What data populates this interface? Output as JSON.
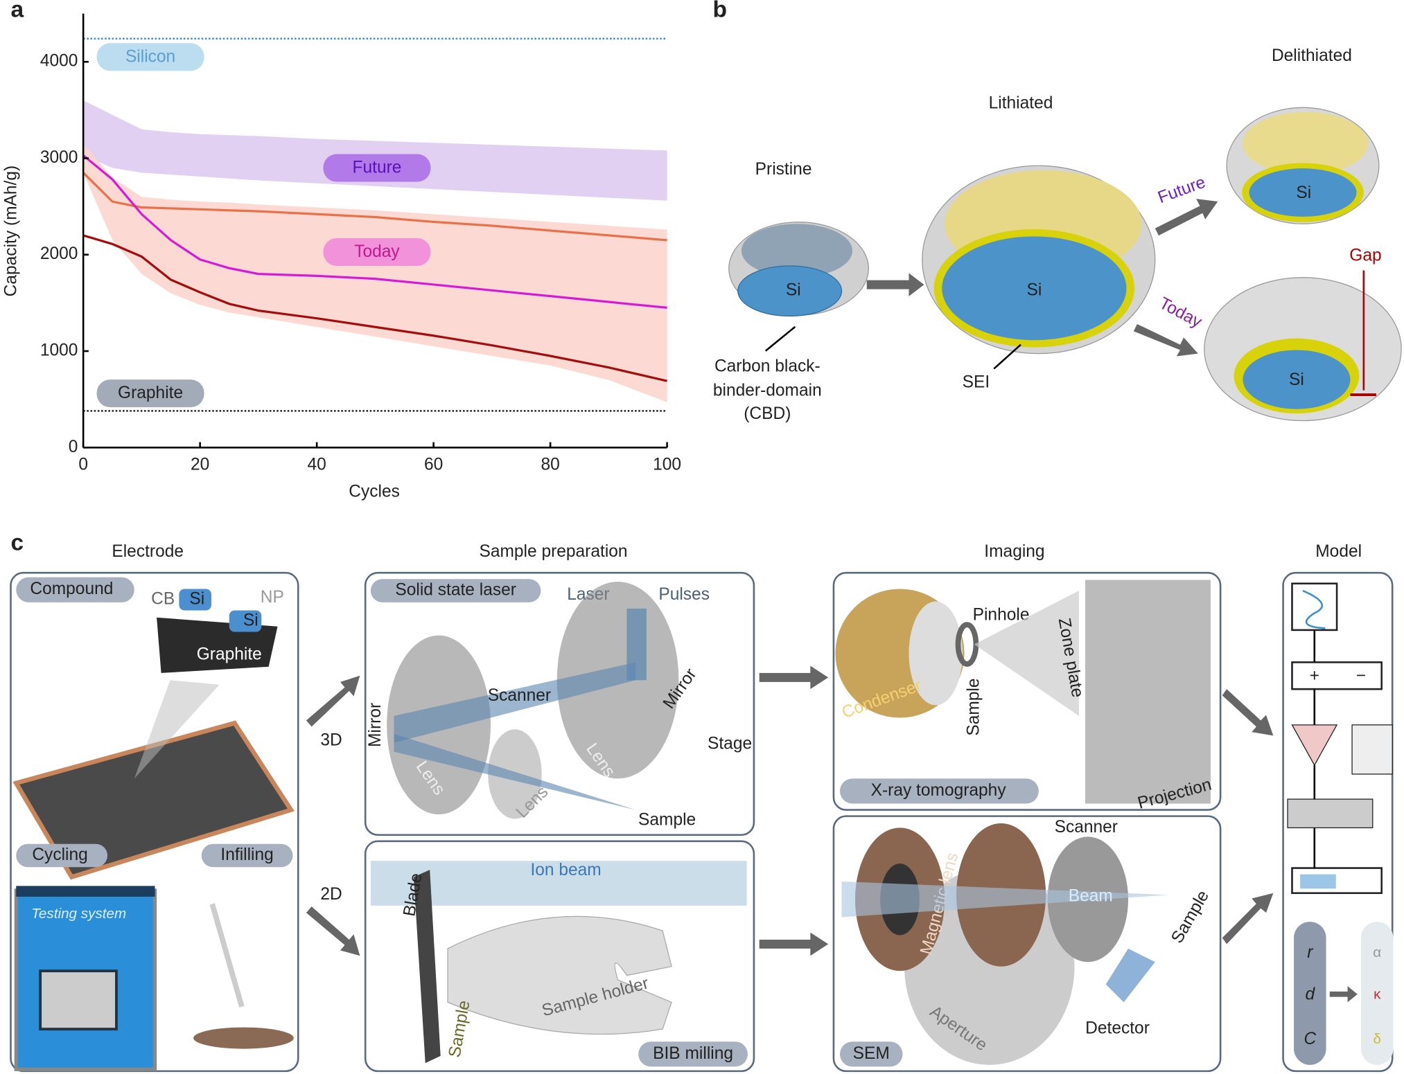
{
  "chart_data": {
    "type": "line",
    "panel_label": "a",
    "xlabel": "Cycles",
    "ylabel": "Capacity (mAh/g)",
    "x": [
      0,
      5,
      10,
      15,
      20,
      25,
      30,
      40,
      50,
      60,
      70,
      80,
      90,
      100
    ],
    "xlim": [
      0,
      100
    ],
    "ylim": [
      0,
      4500
    ],
    "xticks": [
      0,
      20,
      40,
      60,
      80,
      100
    ],
    "yticks": [
      0,
      1000,
      2000,
      3000,
      4000
    ],
    "series": [
      {
        "color": "#e8714a",
        "values": [
          2850,
          2550,
          2490,
          2480,
          2470,
          2460,
          2450,
          2420,
          2390,
          2340,
          2300,
          2250,
          2200,
          2150
        ]
      },
      {
        "color": "#d51cd5",
        "values": [
          3030,
          2780,
          2420,
          2150,
          1950,
          1860,
          1800,
          1780,
          1750,
          1690,
          1630,
          1570,
          1510,
          1450
        ]
      },
      {
        "color": "#a30d0d",
        "values": [
          2200,
          2110,
          1980,
          1740,
          1610,
          1490,
          1420,
          1340,
          1250,
          1160,
          1060,
          950,
          830,
          690
        ]
      }
    ],
    "bands": [
      {
        "name": "Future",
        "color": "#dcc8f0",
        "upper": [
          3600,
          3450,
          3300,
          3270,
          3250,
          3240,
          3230,
          3200,
          3180,
          3160,
          3140,
          3120,
          3100,
          3080
        ],
        "lower": [
          3030,
          2900,
          2850,
          2830,
          2810,
          2790,
          2770,
          2740,
          2710,
          2680,
          2650,
          2620,
          2590,
          2560
        ]
      },
      {
        "name": "Today",
        "color": "#fcd3cb",
        "upper": [
          3150,
          2800,
          2600,
          2570,
          2550,
          2540,
          2520,
          2490,
          2460,
          2420,
          2380,
          2340,
          2300,
          2260
        ],
        "lower": [
          2850,
          2150,
          1800,
          1600,
          1480,
          1400,
          1350,
          1250,
          1150,
          1050,
          950,
          850,
          700,
          470
        ]
      }
    ],
    "reference_lines": [
      {
        "name": "Silicon",
        "value": 4240,
        "color": "#4a90c8"
      },
      {
        "name": "Graphite",
        "value": 380,
        "color": "#222222"
      }
    ]
  },
  "panel_b": {
    "label": "b",
    "pristine": "Pristine",
    "lithiated": "Lithiated",
    "delithiated": "Delithiated",
    "si": "Si",
    "future": "Future",
    "today": "Today",
    "cbd": [
      "Carbon black-",
      "binder-domain",
      "(CBD)"
    ],
    "sei": "SEI",
    "gap": "Gap"
  },
  "panel_c": {
    "label": "c",
    "columns": [
      "Electrode",
      "Sample preparation",
      "Imaging",
      "Model"
    ],
    "electrode": {
      "compound": "Compound",
      "cb": "CB",
      "si": "Si",
      "np": "NP",
      "graphite": "Graphite",
      "cycling": "Cycling",
      "infilling": "Infilling",
      "testing_system": "Testing system"
    },
    "laser": {
      "title": "Solid state laser",
      "laser": "Laser",
      "pulses": "Pulses",
      "scanner": "Scanner",
      "mirror": "Mirror",
      "lens": "Lens",
      "stage": "Stage",
      "sample": "Sample"
    },
    "dims": [
      "3D",
      "2D"
    ],
    "bib": {
      "ion_beam": "Ion beam",
      "blade": "Blade",
      "sample_holder": "Sample holder",
      "sample": "Sample",
      "title": "BIB milling"
    },
    "xray": {
      "pinhole": "Pinhole",
      "condenser": "Condenser",
      "sample": "Sample",
      "zone_plate": "Zone plate",
      "projection": "Projection",
      "title": "X-ray tomography"
    },
    "sem": {
      "scanner": "Scanner",
      "magnetic_lens": "Magnetic lens",
      "beam": "Beam",
      "sample": "Sample",
      "detector": "Detector",
      "aperture": "Aperture",
      "title": "SEM"
    },
    "model": {
      "plus": "+",
      "minus": "−",
      "inputs": [
        "r",
        "d",
        "C"
      ],
      "outputs": [
        "α",
        "κ",
        "δ"
      ]
    }
  }
}
